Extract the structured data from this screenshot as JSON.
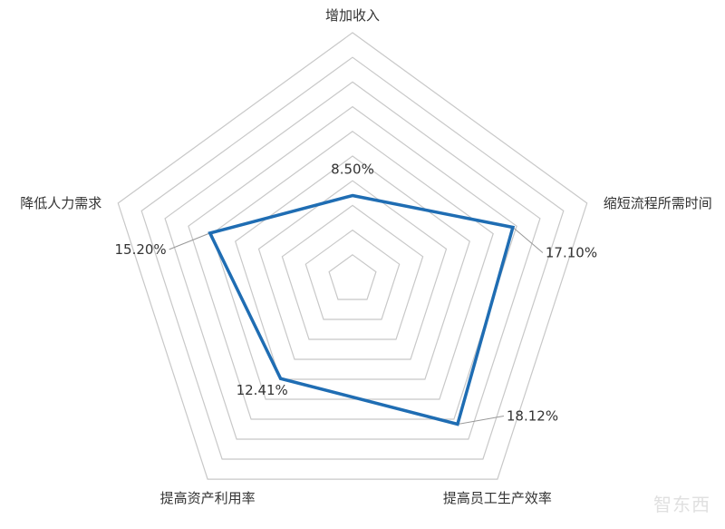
{
  "chart_data": {
    "type": "radar",
    "categories": [
      "增加收入",
      "缩短流程所需时间",
      "提高员工生产效率",
      "提高资产利用率",
      "降低人力需求"
    ],
    "values": [
      8.5,
      17.1,
      18.12,
      12.41,
      15.2
    ],
    "value_labels": [
      "8.50%",
      "17.10%",
      "18.12%",
      "12.41%",
      "15.20%"
    ],
    "rlim": [
      0,
      25
    ],
    "rings": 10,
    "grid": true,
    "legend": "none",
    "colors": {
      "series": "#1f6db3",
      "grid": "#c8c8c8",
      "text": "#333333"
    }
  },
  "watermark": "智东西"
}
